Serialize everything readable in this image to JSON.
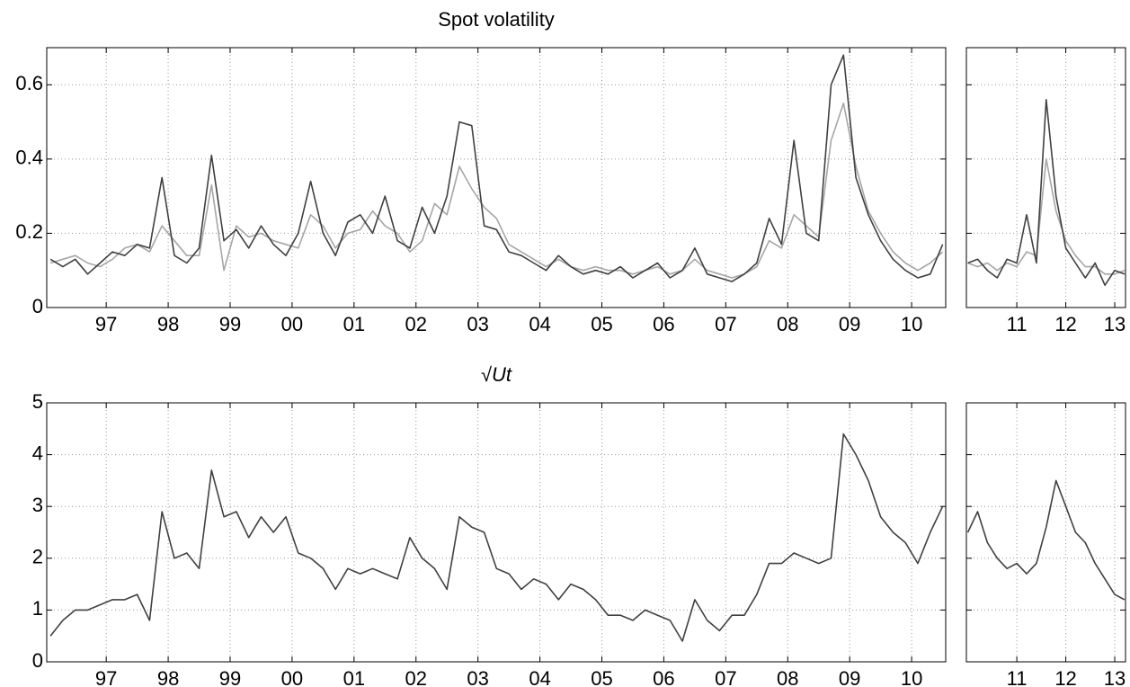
{
  "chart_data": [
    {
      "type": "line",
      "title": "Spot volatility",
      "x": [
        1996.1,
        1996.3,
        1996.5,
        1996.7,
        1996.9,
        1997.1,
        1997.3,
        1997.5,
        1997.7,
        1997.9,
        1998.1,
        1998.3,
        1998.5,
        1998.7,
        1998.9,
        1999.1,
        1999.3,
        1999.5,
        1999.7,
        1999.9,
        2000.1,
        2000.3,
        2000.5,
        2000.7,
        2000.9,
        2001.1,
        2001.3,
        2001.5,
        2001.7,
        2001.9,
        2002.1,
        2002.3,
        2002.5,
        2002.7,
        2002.9,
        2003.1,
        2003.3,
        2003.5,
        2003.7,
        2003.9,
        2004.1,
        2004.3,
        2004.5,
        2004.7,
        2004.9,
        2005.1,
        2005.3,
        2005.5,
        2005.7,
        2005.9,
        2006.1,
        2006.3,
        2006.5,
        2006.7,
        2006.9,
        2007.1,
        2007.3,
        2007.5,
        2007.7,
        2007.9,
        2008.1,
        2008.3,
        2008.5,
        2008.7,
        2008.9,
        2009.1,
        2009.3,
        2009.5,
        2009.7,
        2009.9,
        2010.1,
        2010.3,
        2010.5
      ],
      "series": [
        {
          "color": "#a6a6a6",
          "values": [
            0.12,
            0.13,
            0.14,
            0.12,
            0.11,
            0.13,
            0.16,
            0.17,
            0.15,
            0.22,
            0.18,
            0.14,
            0.14,
            0.33,
            0.1,
            0.22,
            0.19,
            0.2,
            0.18,
            0.17,
            0.16,
            0.25,
            0.22,
            0.16,
            0.2,
            0.21,
            0.26,
            0.22,
            0.2,
            0.15,
            0.18,
            0.28,
            0.25,
            0.38,
            0.32,
            0.27,
            0.24,
            0.17,
            0.15,
            0.13,
            0.11,
            0.13,
            0.11,
            0.1,
            0.11,
            0.1,
            0.1,
            0.09,
            0.1,
            0.11,
            0.09,
            0.1,
            0.13,
            0.1,
            0.09,
            0.08,
            0.09,
            0.11,
            0.18,
            0.16,
            0.25,
            0.22,
            0.19,
            0.45,
            0.55,
            0.38,
            0.26,
            0.2,
            0.15,
            0.12,
            0.1,
            0.12,
            0.15
          ]
        },
        {
          "color": "#404040",
          "values": [
            0.13,
            0.11,
            0.13,
            0.09,
            0.12,
            0.15,
            0.14,
            0.17,
            0.16,
            0.35,
            0.14,
            0.12,
            0.16,
            0.41,
            0.18,
            0.21,
            0.16,
            0.22,
            0.17,
            0.14,
            0.2,
            0.34,
            0.2,
            0.14,
            0.23,
            0.25,
            0.2,
            0.3,
            0.18,
            0.16,
            0.27,
            0.2,
            0.3,
            0.5,
            0.49,
            0.22,
            0.21,
            0.15,
            0.14,
            0.12,
            0.1,
            0.14,
            0.11,
            0.09,
            0.1,
            0.09,
            0.11,
            0.08,
            0.1,
            0.12,
            0.08,
            0.1,
            0.16,
            0.09,
            0.08,
            0.07,
            0.09,
            0.12,
            0.24,
            0.17,
            0.45,
            0.2,
            0.18,
            0.6,
            0.68,
            0.35,
            0.25,
            0.18,
            0.13,
            0.1,
            0.08,
            0.09,
            0.17
          ]
        }
      ],
      "xlim": [
        1996.04,
        2010.55
      ],
      "ylim": [
        0,
        0.7
      ],
      "yticks": [
        0,
        0.2,
        0.4,
        0.6
      ],
      "xticks": [
        {
          "value": 1997,
          "label": "97"
        },
        {
          "value": 1998,
          "label": "98"
        },
        {
          "value": 1999,
          "label": "99"
        },
        {
          "value": 2000,
          "label": "00"
        },
        {
          "value": 2001,
          "label": "01"
        },
        {
          "value": 2002,
          "label": "02"
        },
        {
          "value": 2003,
          "label": "03"
        },
        {
          "value": 2004,
          "label": "04"
        },
        {
          "value": 2005,
          "label": "05"
        },
        {
          "value": 2006,
          "label": "06"
        },
        {
          "value": 2007,
          "label": "07"
        },
        {
          "value": 2008,
          "label": "08"
        },
        {
          "value": 2009,
          "label": "09"
        },
        {
          "value": 2010,
          "label": "10"
        }
      ],
      "grid": true,
      "ytick_labels": true
    },
    {
      "type": "line",
      "x": [
        2010.0,
        2010.2,
        2010.4,
        2010.6,
        2010.8,
        2011.0,
        2011.2,
        2011.4,
        2011.6,
        2011.8,
        2012.0,
        2012.2,
        2012.4,
        2012.6,
        2012.8,
        2013.0,
        2013.2
      ],
      "series": [
        {
          "color": "#a6a6a6",
          "values": [
            0.12,
            0.11,
            0.12,
            0.1,
            0.12,
            0.11,
            0.15,
            0.14,
            0.4,
            0.26,
            0.18,
            0.14,
            0.11,
            0.11,
            0.09,
            0.09,
            0.1
          ]
        },
        {
          "color": "#404040",
          "values": [
            0.12,
            0.13,
            0.1,
            0.08,
            0.13,
            0.12,
            0.25,
            0.12,
            0.56,
            0.3,
            0.16,
            0.12,
            0.08,
            0.12,
            0.06,
            0.1,
            0.09
          ]
        }
      ],
      "xlim": [
        2009.97,
        2013.22
      ],
      "ylim": [
        0,
        0.7
      ],
      "yticks": [
        0,
        0.2,
        0.4,
        0.6
      ],
      "xticks": [
        {
          "value": 2011,
          "label": "11"
        },
        {
          "value": 2012,
          "label": "12"
        },
        {
          "value": 2013,
          "label": "13"
        }
      ],
      "grid": true,
      "ytick_labels": false
    },
    {
      "type": "line",
      "title": "√Ut",
      "x": [
        1996.1,
        1996.3,
        1996.5,
        1996.7,
        1996.9,
        1997.1,
        1997.3,
        1997.5,
        1997.7,
        1997.9,
        1998.1,
        1998.3,
        1998.5,
        1998.7,
        1998.9,
        1999.1,
        1999.3,
        1999.5,
        1999.7,
        1999.9,
        2000.1,
        2000.3,
        2000.5,
        2000.7,
        2000.9,
        2001.1,
        2001.3,
        2001.5,
        2001.7,
        2001.9,
        2002.1,
        2002.3,
        2002.5,
        2002.7,
        2002.9,
        2003.1,
        2003.3,
        2003.5,
        2003.7,
        2003.9,
        2004.1,
        2004.3,
        2004.5,
        2004.7,
        2004.9,
        2005.1,
        2005.3,
        2005.5,
        2005.7,
        2005.9,
        2006.1,
        2006.3,
        2006.5,
        2006.7,
        2006.9,
        2007.1,
        2007.3,
        2007.5,
        2007.7,
        2007.9,
        2008.1,
        2008.3,
        2008.5,
        2008.7,
        2008.9,
        2009.1,
        2009.3,
        2009.5,
        2009.7,
        2009.9,
        2010.1,
        2010.3,
        2010.5
      ],
      "series": [
        {
          "color": "#404040",
          "values": [
            0.5,
            0.8,
            1.0,
            1.0,
            1.1,
            1.2,
            1.2,
            1.3,
            0.8,
            2.9,
            2.0,
            2.1,
            1.8,
            3.7,
            2.8,
            2.9,
            2.4,
            2.8,
            2.5,
            2.8,
            2.1,
            2.0,
            1.8,
            1.4,
            1.8,
            1.7,
            1.8,
            1.7,
            1.6,
            2.4,
            2.0,
            1.8,
            1.4,
            2.8,
            2.6,
            2.5,
            1.8,
            1.7,
            1.4,
            1.6,
            1.5,
            1.2,
            1.5,
            1.4,
            1.2,
            0.9,
            0.9,
            0.8,
            1.0,
            0.9,
            0.8,
            0.4,
            1.2,
            0.8,
            0.6,
            0.9,
            0.9,
            1.3,
            1.9,
            1.9,
            2.1,
            2.0,
            1.9,
            2.0,
            4.4,
            4.0,
            3.5,
            2.8,
            2.5,
            2.3,
            1.9,
            2.5,
            3.0
          ]
        }
      ],
      "xlim": [
        1996.04,
        2010.55
      ],
      "ylim": [
        0,
        5
      ],
      "yticks": [
        0,
        1,
        2,
        3,
        4,
        5
      ],
      "xticks": [
        {
          "value": 1997,
          "label": "97"
        },
        {
          "value": 1998,
          "label": "98"
        },
        {
          "value": 1999,
          "label": "99"
        },
        {
          "value": 2000,
          "label": "00"
        },
        {
          "value": 2001,
          "label": "01"
        },
        {
          "value": 2002,
          "label": "02"
        },
        {
          "value": 2003,
          "label": "03"
        },
        {
          "value": 2004,
          "label": "04"
        },
        {
          "value": 2005,
          "label": "05"
        },
        {
          "value": 2006,
          "label": "06"
        },
        {
          "value": 2007,
          "label": "07"
        },
        {
          "value": 2008,
          "label": "08"
        },
        {
          "value": 2009,
          "label": "09"
        },
        {
          "value": 2010,
          "label": "10"
        }
      ],
      "grid": true,
      "ytick_labels": true
    },
    {
      "type": "line",
      "x": [
        2010.0,
        2010.2,
        2010.4,
        2010.6,
        2010.8,
        2011.0,
        2011.2,
        2011.4,
        2011.6,
        2011.8,
        2012.0,
        2012.2,
        2012.4,
        2012.6,
        2012.8,
        2013.0,
        2013.2
      ],
      "series": [
        {
          "color": "#404040",
          "values": [
            2.5,
            2.9,
            2.3,
            2.0,
            1.8,
            1.9,
            1.7,
            1.9,
            2.6,
            3.5,
            3.0,
            2.5,
            2.3,
            1.9,
            1.6,
            1.3,
            1.2
          ]
        }
      ],
      "xlim": [
        2009.97,
        2013.22
      ],
      "ylim": [
        0,
        5
      ],
      "yticks": [
        0,
        1,
        2,
        3,
        4,
        5
      ],
      "xticks": [
        {
          "value": 2011,
          "label": "11"
        },
        {
          "value": 2012,
          "label": "12"
        },
        {
          "value": 2013,
          "label": "13"
        }
      ],
      "grid": true,
      "ytick_labels": false
    }
  ]
}
